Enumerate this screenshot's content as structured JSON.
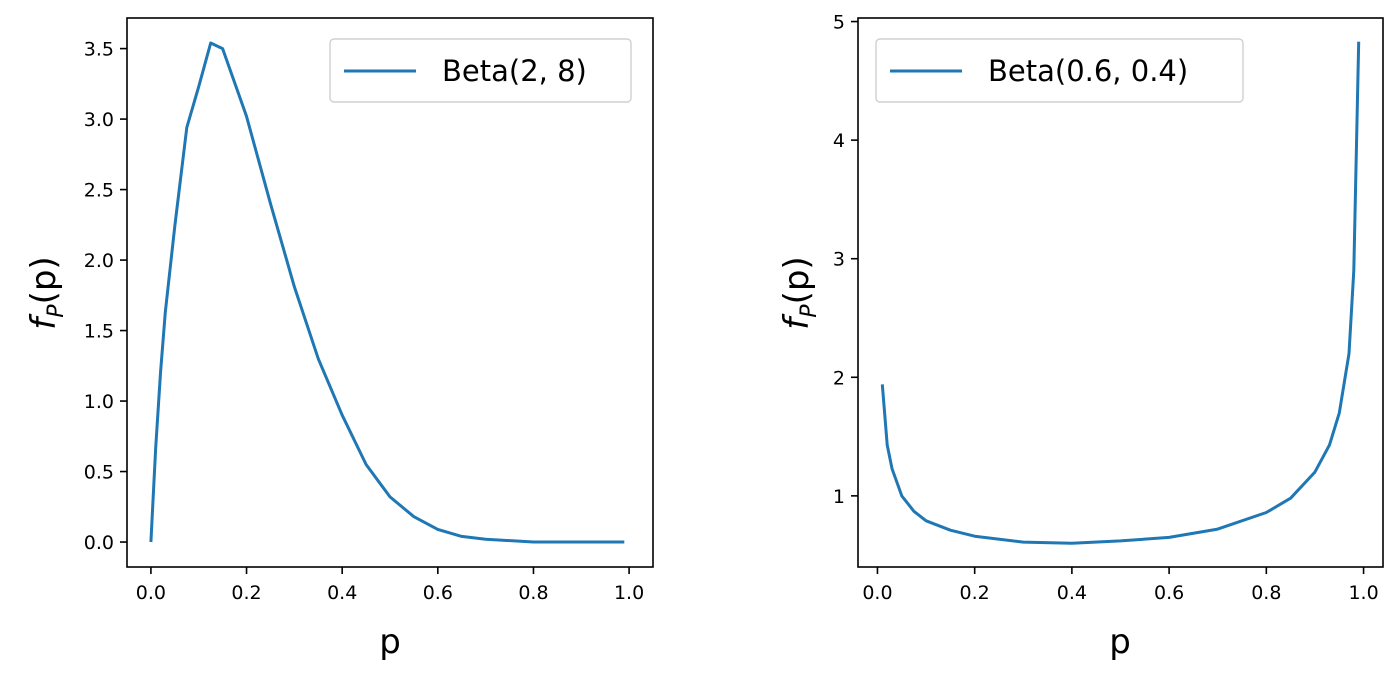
{
  "chart_data": [
    {
      "type": "line",
      "xlabel": "p",
      "ylabel": {
        "main": "f",
        "sub": "P",
        "rest": "(p)"
      },
      "xlim": [
        -0.05,
        1.05
      ],
      "ylim": [
        -0.177,
        3.717
      ],
      "xticks": [
        0.0,
        0.2,
        0.4,
        0.6,
        0.8,
        1.0
      ],
      "xtick_labels": [
        "0.0",
        "0.2",
        "0.4",
        "0.6",
        "0.8",
        "1.0"
      ],
      "yticks": [
        0.0,
        0.5,
        1.0,
        1.5,
        2.0,
        2.5,
        3.0,
        3.5
      ],
      "ytick_labels": [
        "0.0",
        "0.5",
        "1.0",
        "1.5",
        "2.0",
        "2.5",
        "3.0",
        "3.5"
      ],
      "grid": false,
      "legend_position": "top-right",
      "color": "#1f77b4",
      "series": [
        {
          "name": "Beta(2, 8)",
          "x": [
            0.0,
            0.01,
            0.02,
            0.03,
            0.05,
            0.075,
            0.1,
            0.125,
            0.15,
            0.2,
            0.25,
            0.3,
            0.35,
            0.4,
            0.45,
            0.5,
            0.55,
            0.6,
            0.65,
            0.7,
            0.8,
            0.9,
            0.99
          ],
          "y": [
            0.0,
            0.67,
            1.2,
            1.63,
            2.24,
            2.94,
            3.23,
            3.54,
            3.5,
            3.02,
            2.4,
            1.81,
            1.3,
            0.9,
            0.55,
            0.32,
            0.18,
            0.09,
            0.04,
            0.02,
            0.0,
            0.0,
            0.0
          ]
        }
      ]
    },
    {
      "type": "line",
      "xlabel": "p",
      "ylabel": {
        "main": "f",
        "sub": "P",
        "rest": "(p)"
      },
      "xlim": [
        -0.04,
        1.04
      ],
      "ylim": [
        0.4,
        5.03
      ],
      "xticks": [
        0.0,
        0.2,
        0.4,
        0.6,
        0.8,
        1.0
      ],
      "xtick_labels": [
        "0.0",
        "0.2",
        "0.4",
        "0.6",
        "0.8",
        "1.0"
      ],
      "yticks": [
        1,
        2,
        3,
        4,
        5
      ],
      "ytick_labels": [
        "1",
        "2",
        "3",
        "4",
        "5"
      ],
      "grid": false,
      "legend_position": "top-left",
      "color": "#1f77b4",
      "series": [
        {
          "name": "Beta(0.6, 0.4)",
          "x": [
            0.01,
            0.02,
            0.03,
            0.05,
            0.075,
            0.1,
            0.15,
            0.2,
            0.3,
            0.4,
            0.5,
            0.6,
            0.7,
            0.8,
            0.85,
            0.9,
            0.93,
            0.95,
            0.97,
            0.98,
            0.99
          ],
          "y": [
            1.94,
            1.43,
            1.23,
            1.0,
            0.87,
            0.79,
            0.71,
            0.66,
            0.61,
            0.6,
            0.62,
            0.65,
            0.72,
            0.86,
            0.98,
            1.2,
            1.43,
            1.7,
            2.2,
            2.9,
            4.83
          ]
        }
      ]
    }
  ]
}
